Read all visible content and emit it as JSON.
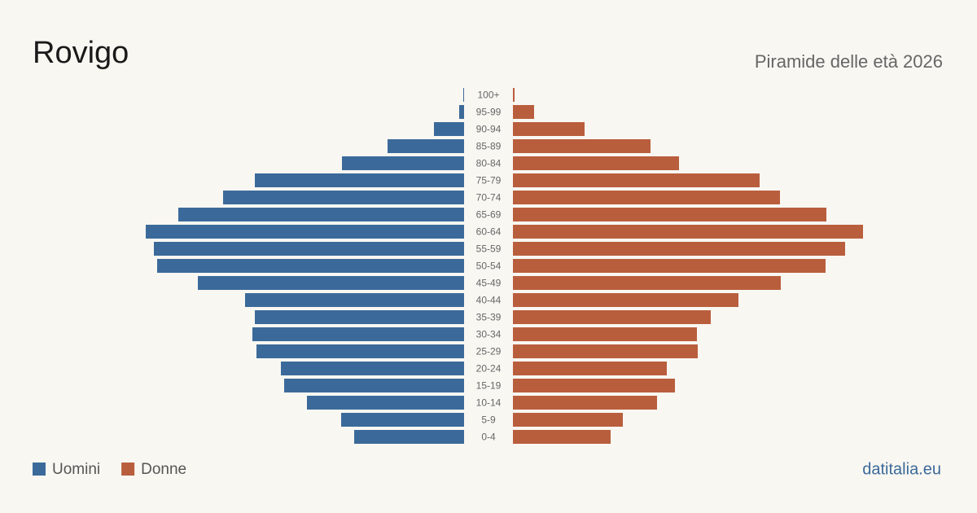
{
  "chart_data": {
    "type": "pyramid",
    "title": "Rovigo",
    "subtitle": "Piramide delle età 2026",
    "source": "datitalia.eu",
    "categories": [
      "100+",
      "95-99",
      "90-94",
      "85-89",
      "80-84",
      "75-79",
      "70-74",
      "65-69",
      "60-64",
      "55-59",
      "50-54",
      "45-49",
      "40-44",
      "35-39",
      "30-34",
      "25-29",
      "20-24",
      "15-19",
      "10-14",
      "5-9",
      "0-4"
    ],
    "series": [
      {
        "name": "Uomini",
        "color": "#3b6a9a",
        "values": [
          5,
          30,
          185,
          470,
          750,
          1285,
          1480,
          1755,
          1955,
          1905,
          1885,
          1635,
          1345,
          1285,
          1300,
          1275,
          1125,
          1105,
          965,
          755,
          675
        ]
      },
      {
        "name": "Donne",
        "color": "#b95e3d",
        "values": [
          10,
          130,
          440,
          845,
          1020,
          1515,
          1640,
          1925,
          2150,
          2040,
          1920,
          1645,
          1385,
          1215,
          1130,
          1135,
          945,
          995,
          885,
          675,
          600
        ]
      }
    ]
  }
}
